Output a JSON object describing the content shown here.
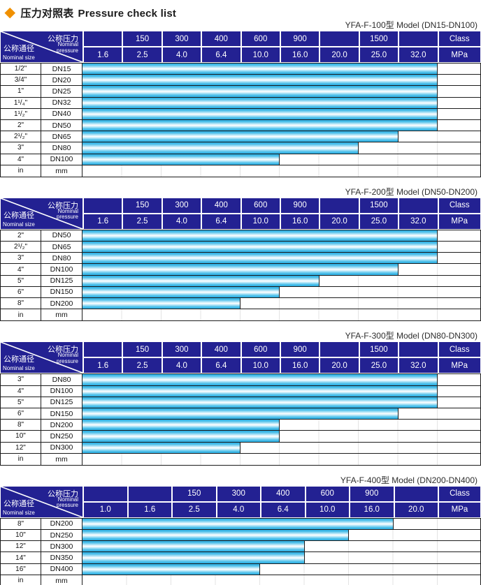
{
  "page": {
    "title_zh": "压力对照表",
    "title_en": "Pressure check list"
  },
  "colors": {
    "diamond": "#f09000",
    "header_bg": "#232192",
    "header_text": "#ffffff",
    "bar_cyan": "#29ade2",
    "bar_highlight": "#ffffff",
    "grid_line": "#1c1c1c",
    "faint_line": "#e3e3e3"
  },
  "header_labels": {
    "corner_top_zh": "公称压力",
    "corner_top_en": "Nominal pressure",
    "corner_bottom_zh": "公称通径",
    "corner_bottom_en": "Nominal size"
  },
  "tables": [
    {
      "title": "YFA-F-100型  Model (DN15-DN100)",
      "pressure_columns": 9,
      "class_row": [
        "",
        "150",
        "300",
        "400",
        "600",
        "900",
        "",
        "1500",
        "",
        "Class"
      ],
      "mpa_row": [
        "1.6",
        "2.5",
        "4.0",
        "6.4",
        "10.0",
        "16.0",
        "20.0",
        "25.0",
        "32.0",
        "MPa"
      ],
      "rows": [
        {
          "inch": "1/2\"",
          "dn": "DN15",
          "bar_span": 9,
          "bar_end_mpa": 32.0
        },
        {
          "inch": "3/4\"",
          "dn": "DN20",
          "bar_span": 9,
          "bar_end_mpa": 32.0
        },
        {
          "inch": "1\"",
          "dn": "DN25",
          "bar_span": 9,
          "bar_end_mpa": 32.0
        },
        {
          "inch": "1¹/₄\"",
          "dn": "DN32",
          "bar_span": 9,
          "bar_end_mpa": 32.0
        },
        {
          "inch": "1¹/₂\"",
          "dn": "DN40",
          "bar_span": 9,
          "bar_end_mpa": 32.0
        },
        {
          "inch": "2\"",
          "dn": "DN50",
          "bar_span": 9,
          "bar_end_mpa": 32.0
        },
        {
          "inch": "2¹/₂\"",
          "dn": "DN65",
          "bar_span": 8,
          "bar_end_mpa": 25.0
        },
        {
          "inch": "3\"",
          "dn": "DN80",
          "bar_span": 7,
          "bar_end_mpa": 20.0
        },
        {
          "inch": "4\"",
          "dn": "DN100",
          "bar_span": 5,
          "bar_end_mpa": 10.0
        }
      ],
      "unit_row": {
        "inch": "in",
        "dn": "mm"
      }
    },
    {
      "title": "YFA-F-200型  Model (DN50-DN200)",
      "pressure_columns": 9,
      "class_row": [
        "",
        "150",
        "300",
        "400",
        "600",
        "900",
        "",
        "1500",
        "",
        "Class"
      ],
      "mpa_row": [
        "1.6",
        "2.5",
        "4.0",
        "6.4",
        "10.0",
        "16.0",
        "20.0",
        "25.0",
        "32.0",
        "MPa"
      ],
      "rows": [
        {
          "inch": "2\"",
          "dn": "DN50",
          "bar_span": 9,
          "bar_end_mpa": 32.0
        },
        {
          "inch": "2¹/₂\"",
          "dn": "DN65",
          "bar_span": 9,
          "bar_end_mpa": 32.0
        },
        {
          "inch": "3\"",
          "dn": "DN80",
          "bar_span": 9,
          "bar_end_mpa": 32.0
        },
        {
          "inch": "4\"",
          "dn": "DN100",
          "bar_span": 8,
          "bar_end_mpa": 25.0
        },
        {
          "inch": "5\"",
          "dn": "DN125",
          "bar_span": 6,
          "bar_end_mpa": 16.0
        },
        {
          "inch": "6\"",
          "dn": "DN150",
          "bar_span": 5,
          "bar_end_mpa": 10.0
        },
        {
          "inch": "8\"",
          "dn": "DN200",
          "bar_span": 4,
          "bar_end_mpa": 6.4
        }
      ],
      "unit_row": {
        "inch": "in",
        "dn": "mm"
      }
    },
    {
      "title": "YFA-F-300型  Model (DN80-DN300)",
      "pressure_columns": 9,
      "class_row": [
        "",
        "150",
        "300",
        "400",
        "600",
        "900",
        "",
        "1500",
        "",
        "Class"
      ],
      "mpa_row": [
        "1.6",
        "2.5",
        "4.0",
        "6.4",
        "10.0",
        "16.0",
        "20.0",
        "25.0",
        "32.0",
        "MPa"
      ],
      "rows": [
        {
          "inch": "3\"",
          "dn": "DN80",
          "bar_span": 9,
          "bar_end_mpa": 32.0
        },
        {
          "inch": "4\"",
          "dn": "DN100",
          "bar_span": 9,
          "bar_end_mpa": 32.0
        },
        {
          "inch": "5\"",
          "dn": "DN125",
          "bar_span": 9,
          "bar_end_mpa": 32.0
        },
        {
          "inch": "6\"",
          "dn": "DN150",
          "bar_span": 8,
          "bar_end_mpa": 25.0
        },
        {
          "inch": "8\"",
          "dn": "DN200",
          "bar_span": 5,
          "bar_end_mpa": 10.0
        },
        {
          "inch": "10\"",
          "dn": "DN250",
          "bar_span": 5,
          "bar_end_mpa": 10.0
        },
        {
          "inch": "12\"",
          "dn": "DN300",
          "bar_span": 4,
          "bar_end_mpa": 6.4
        }
      ],
      "unit_row": {
        "inch": "in",
        "dn": "mm"
      }
    },
    {
      "title": "YFA-F-400型  Model (DN200-DN400)",
      "pressure_columns": 8,
      "class_row": [
        "",
        "",
        "150",
        "300",
        "400",
        "600",
        "900",
        "",
        "Class"
      ],
      "mpa_row": [
        "1.0",
        "1.6",
        "2.5",
        "4.0",
        "6.4",
        "10.0",
        "16.0",
        "20.0",
        "MPa"
      ],
      "rows": [
        {
          "inch": "8\"",
          "dn": "DN200",
          "bar_span": 7,
          "bar_end_mpa": 16.0
        },
        {
          "inch": "10\"",
          "dn": "DN250",
          "bar_span": 6,
          "bar_end_mpa": 10.0
        },
        {
          "inch": "12\"",
          "dn": "DN300",
          "bar_span": 5,
          "bar_end_mpa": 6.4
        },
        {
          "inch": "14\"",
          "dn": "DN350",
          "bar_span": 5,
          "bar_end_mpa": 6.4
        },
        {
          "inch": "16\"",
          "dn": "DN400",
          "bar_span": 4,
          "bar_end_mpa": 4.0
        }
      ],
      "unit_row": {
        "inch": "in",
        "dn": "mm"
      }
    }
  ]
}
